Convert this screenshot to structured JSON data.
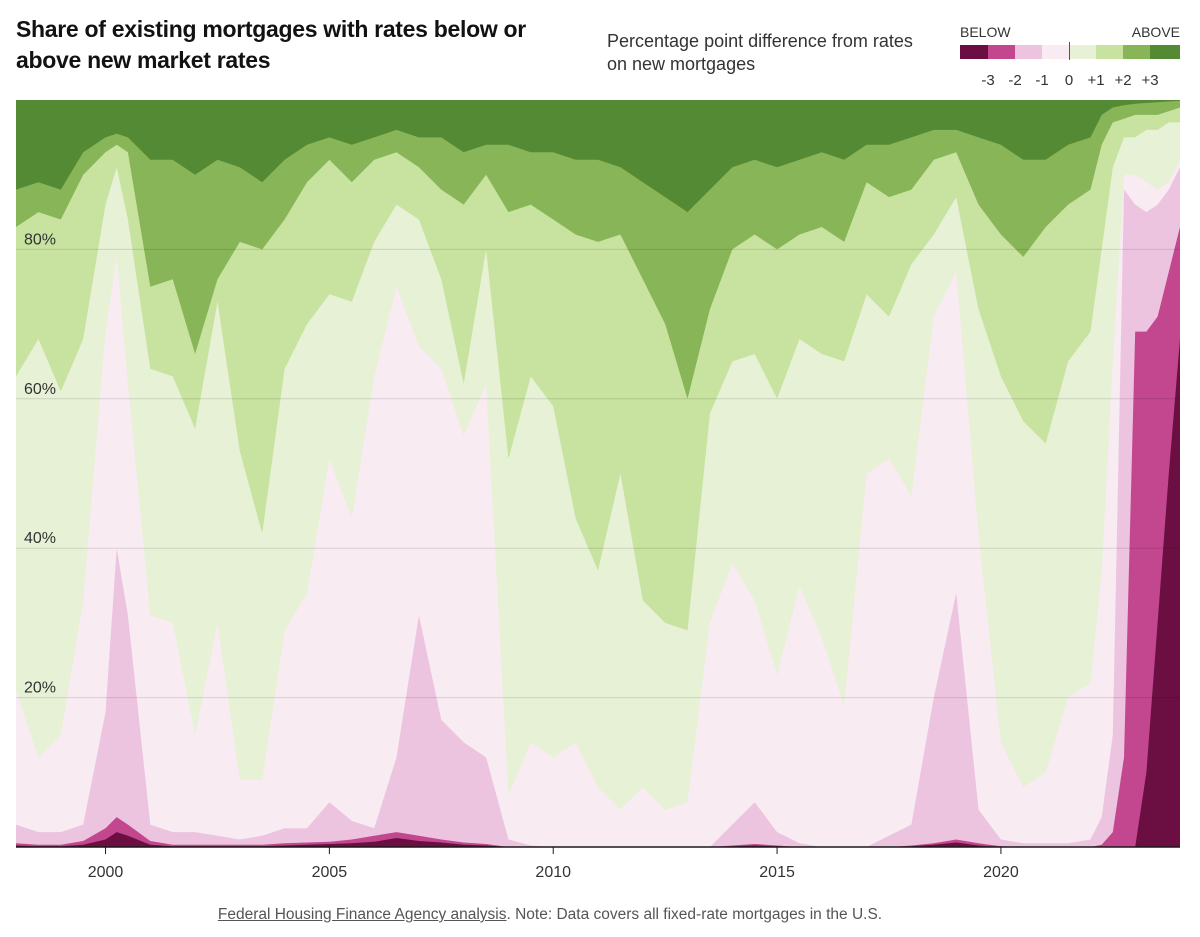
{
  "title": "Share of existing mortgages with rates below or above new market rates",
  "subtitle": "Percentage point difference from rates on new mortgages",
  "legend": {
    "below_label": "BELOW",
    "above_label": "ABOVE",
    "ticks": [
      "-3",
      "-2",
      "-1",
      "0",
      "+1",
      "+2",
      "+3"
    ]
  },
  "source": {
    "link_text": "Federal Housing Finance Agency analysis",
    "note": ". Note: Data covers all fixed-rate mortgages in the U.S."
  },
  "chart_data": {
    "type": "area",
    "stacked": true,
    "ylim": [
      0,
      100
    ],
    "y_ticks": [
      20,
      40,
      60,
      80
    ],
    "y_tick_labels": [
      "20%",
      "40%",
      "60%",
      "80%"
    ],
    "x_range": [
      1998.0,
      2024.0
    ],
    "x_ticks": [
      2000,
      2005,
      2010,
      2015,
      2020
    ],
    "x_tick_labels": [
      "2000",
      "2005",
      "2010",
      "2015",
      "2020"
    ],
    "grid": true,
    "legend_position": "top-right",
    "colors": [
      "#6b0f42",
      "#c2478e",
      "#edc4df",
      "#f8ebf2",
      "#e6f1d6",
      "#c8e29f",
      "#88b557",
      "#548a34"
    ],
    "series_order": [
      "-3",
      "-2",
      "-1",
      "0 below",
      "0 above",
      "+1",
      "+2",
      "+3"
    ],
    "x": [
      1998.0,
      1998.5,
      1999.0,
      1999.5,
      2000.0,
      2000.25,
      2000.5,
      2001.0,
      2001.5,
      2002.0,
      2002.5,
      2003.0,
      2003.5,
      2004.0,
      2004.5,
      2005.0,
      2005.5,
      2006.0,
      2006.5,
      2007.0,
      2007.5,
      2008.0,
      2008.5,
      2009.0,
      2009.5,
      2010.0,
      2010.5,
      2011.0,
      2011.5,
      2012.0,
      2012.5,
      2013.0,
      2013.5,
      2014.0,
      2014.5,
      2015.0,
      2015.5,
      2016.0,
      2016.5,
      2017.0,
      2017.5,
      2018.0,
      2018.5,
      2019.0,
      2019.5,
      2020.0,
      2020.5,
      2021.0,
      2021.5,
      2022.0,
      2022.25,
      2022.5,
      2022.75,
      2023.0,
      2023.25,
      2023.5,
      2023.75,
      2024.0
    ],
    "boundaries": [
      [
        0.2,
        0.1,
        0.1,
        0.3,
        1.0,
        2.0,
        1.5,
        0.3,
        0.1,
        0.1,
        0.1,
        0.1,
        0.1,
        0.2,
        0.3,
        0.4,
        0.5,
        0.7,
        1.2,
        0.8,
        0.6,
        0.3,
        0.2,
        0.0,
        0.0,
        0.0,
        0.0,
        0.0,
        0.0,
        0.0,
        0.0,
        0.0,
        0.0,
        0.1,
        0.2,
        0.1,
        0.0,
        0.0,
        0.0,
        0.0,
        0.0,
        0.1,
        0.3,
        0.6,
        0.2,
        0.0,
        0.0,
        0.0,
        0.0,
        0.0,
        0.0,
        0.0,
        0.0,
        0.0,
        10.0,
        30.0,
        50.0,
        68.0
      ],
      [
        0.5,
        0.3,
        0.3,
        0.8,
        2.5,
        4.0,
        3.0,
        0.8,
        0.3,
        0.3,
        0.3,
        0.3,
        0.3,
        0.5,
        0.6,
        0.7,
        1.0,
        1.5,
        2.0,
        1.5,
        1.0,
        0.6,
        0.4,
        0.0,
        0.0,
        0.0,
        0.0,
        0.0,
        0.0,
        0.0,
        0.0,
        0.0,
        0.0,
        0.2,
        0.4,
        0.2,
        0.0,
        0.0,
        0.0,
        0.0,
        0.0,
        0.2,
        0.5,
        1.0,
        0.5,
        0.1,
        0.0,
        0.0,
        0.0,
        0.0,
        0.3,
        2.0,
        12.0,
        69.0,
        69.0,
        71.0,
        77.0,
        83.0
      ],
      [
        3.0,
        2.0,
        2.0,
        3.0,
        18.0,
        40.0,
        31.0,
        3.0,
        2.0,
        2.0,
        1.5,
        1.0,
        1.5,
        2.5,
        2.5,
        6.0,
        3.5,
        2.5,
        12.0,
        31.0,
        17.0,
        14.0,
        12.0,
        1.0,
        0.2,
        0.0,
        0.0,
        0.0,
        0.0,
        0.0,
        0.0,
        0.0,
        0.0,
        3.0,
        6.0,
        2.0,
        0.5,
        0.0,
        0.0,
        0.0,
        1.5,
        3.0,
        20.0,
        34.0,
        5.0,
        1.0,
        0.5,
        0.5,
        0.5,
        1.0,
        4.0,
        15.0,
        88.0,
        86.0,
        85.0,
        86.0,
        88.0,
        91.0
      ],
      [
        21.0,
        12.0,
        15.0,
        33.0,
        69.0,
        79.0,
        62.0,
        31.0,
        30.0,
        15.0,
        30.0,
        9.0,
        9.0,
        29.0,
        34.0,
        52.0,
        44.0,
        63.0,
        75.0,
        67.0,
        64.0,
        55.0,
        62.0,
        7.0,
        14.0,
        12.0,
        14.0,
        8.0,
        5.0,
        8.0,
        5.0,
        6.0,
        30.0,
        38.0,
        33.0,
        23.0,
        35.0,
        28.0,
        19.0,
        50.0,
        52.0,
        47.0,
        71.0,
        77.0,
        42.0,
        14.0,
        8.0,
        10.0,
        20.0,
        22.0,
        37.0,
        65.0,
        90.0,
        90.0,
        89.0,
        88.0,
        89.0,
        92.0
      ],
      [
        63.0,
        68.0,
        61.0,
        68.0,
        86.0,
        91.0,
        84.0,
        64.0,
        63.0,
        56.0,
        73.0,
        53.0,
        42.0,
        64.0,
        70.0,
        74.0,
        73.0,
        81.0,
        86.0,
        84.0,
        76.0,
        62.0,
        80.0,
        52.0,
        63.0,
        59.0,
        44.0,
        37.0,
        50.0,
        33.0,
        30.0,
        29.0,
        58.0,
        65.0,
        66.0,
        60.0,
        68.0,
        66.0,
        65.0,
        74.0,
        71.0,
        78.0,
        82.0,
        87.0,
        72.0,
        63.0,
        57.0,
        54.0,
        65.0,
        69.0,
        80.0,
        91.0,
        95.0,
        95.0,
        96.0,
        96.0,
        97.0,
        97.0
      ],
      [
        83.0,
        85.0,
        84.0,
        90.0,
        93.0,
        94.0,
        93.0,
        75.0,
        76.0,
        66.0,
        76.0,
        81.0,
        80.0,
        84.0,
        89.0,
        92.0,
        89.0,
        92.0,
        93.0,
        91.0,
        88.0,
        86.0,
        90.0,
        85.0,
        86.0,
        84.0,
        82.0,
        81.0,
        82.0,
        76.0,
        70.0,
        60.0,
        72.0,
        80.0,
        82.0,
        80.0,
        82.0,
        83.0,
        81.0,
        89.0,
        87.0,
        88.0,
        92.0,
        93.0,
        86.0,
        82.0,
        79.0,
        83.0,
        86.0,
        88.0,
        94.0,
        97.0,
        97.5,
        98.0,
        98.0,
        98.0,
        98.5,
        99.0
      ],
      [
        88.0,
        89.0,
        88.0,
        93.0,
        95.0,
        95.5,
        95.0,
        92.0,
        92.0,
        90.0,
        92.0,
        91.0,
        89.0,
        92.0,
        94.0,
        95.0,
        94.0,
        95.0,
        96.0,
        95.0,
        95.0,
        93.0,
        94.0,
        94.0,
        93.0,
        93.0,
        92.0,
        92.0,
        91.0,
        89.0,
        87.0,
        85.0,
        88.0,
        91.0,
        92.0,
        91.0,
        92.0,
        93.0,
        92.0,
        94.0,
        94.0,
        95.0,
        96.0,
        96.0,
        95.0,
        94.0,
        92.0,
        92.0,
        94.0,
        95.0,
        98.0,
        99.0,
        99.3,
        99.5,
        99.6,
        99.7,
        99.8,
        99.9
      ],
      [
        100.0,
        100.0,
        100.0,
        100.0,
        100.0,
        100.0,
        100.0,
        100.0,
        100.0,
        100.0,
        100.0,
        100.0,
        100.0,
        100.0,
        100.0,
        100.0,
        100.0,
        100.0,
        100.0,
        100.0,
        100.0,
        100.0,
        100.0,
        100.0,
        100.0,
        100.0,
        100.0,
        100.0,
        100.0,
        100.0,
        100.0,
        100.0,
        100.0,
        100.0,
        100.0,
        100.0,
        100.0,
        100.0,
        100.0,
        100.0,
        100.0,
        100.0,
        100.0,
        100.0,
        100.0,
        100.0,
        100.0,
        100.0,
        100.0,
        100.0,
        100.0,
        100.0,
        100.0,
        100.0,
        100.0,
        100.0,
        100.0,
        100.0
      ]
    ]
  }
}
